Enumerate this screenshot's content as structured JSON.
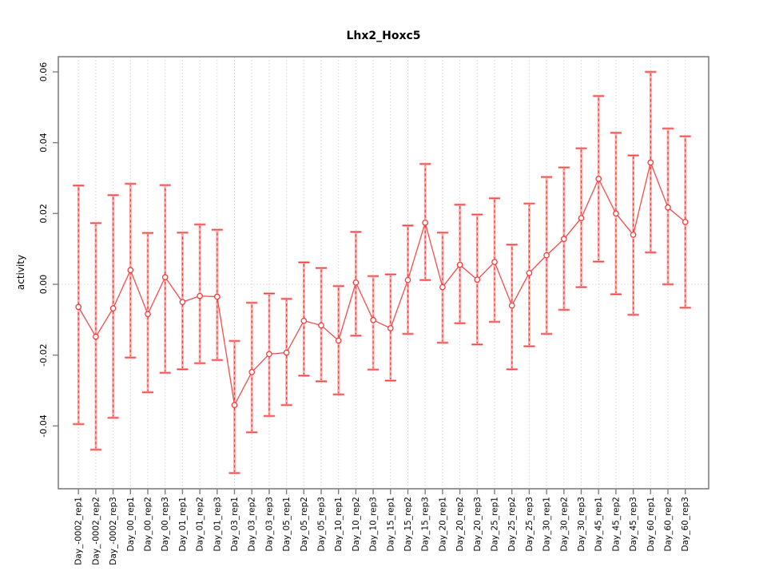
{
  "chart_data": {
    "type": "line",
    "subtype": "points-with-error-bars",
    "title": "Lhx2_Hoxc5",
    "xlabel": "",
    "ylabel": "activity",
    "legend": "none",
    "grid": {
      "vertical": "dotted at every category",
      "horizontal": "dotted at y=0 only"
    },
    "y_ticks": [
      0.06,
      0.04,
      0.02,
      0.0,
      -0.02,
      -0.04
    ],
    "y_tick_labels": [
      "0.06",
      "0.04",
      "0.02",
      "0.00",
      "-0.02",
      "-0.04"
    ],
    "ylim": [
      -0.058,
      0.064
    ],
    "categories": [
      "Day_-0002_rep1",
      "Day_-0002_rep2",
      "Day_-0002_rep3",
      "Day_00_rep1",
      "Day_00_rep2",
      "Day_00_rep3",
      "Day_01_rep1",
      "Day_01_rep2",
      "Day_01_rep3",
      "Day_03_rep1",
      "Day_03_rep2",
      "Day_03_rep3",
      "Day_05_rep1",
      "Day_05_rep2",
      "Day_05_rep3",
      "Day_10_rep1",
      "Day_10_rep2",
      "Day_10_rep3",
      "Day_15_rep1",
      "Day_15_rep2",
      "Day_15_rep3",
      "Day_20_rep1",
      "Day_20_rep2",
      "Day_20_rep3",
      "Day_25_rep1",
      "Day_25_rep2",
      "Day_25_rep3",
      "Day_30_rep1",
      "Day_30_rep2",
      "Day_30_rep3",
      "Day_45_rep1",
      "Day_45_rep2",
      "Day_45_rep3",
      "Day_60_rep1",
      "Day_60_rep2",
      "Day_60_rep3"
    ],
    "series": [
      {
        "name": "activity",
        "values": [
          -0.0064,
          -0.0148,
          -0.0068,
          0.004,
          -0.0084,
          0.002,
          -0.005,
          -0.0033,
          -0.0035,
          -0.0341,
          -0.0248,
          -0.0197,
          -0.0193,
          -0.0103,
          -0.0116,
          -0.0159,
          0.0005,
          -0.0101,
          -0.0124,
          0.0012,
          0.0174,
          -0.0008,
          0.0055,
          0.0013,
          0.0063,
          -0.006,
          0.0032,
          0.0082,
          0.0128,
          0.0187,
          0.0298,
          0.02,
          0.014,
          0.0344,
          0.0217,
          0.0176
        ],
        "error_lower": [
          -0.0395,
          -0.0467,
          -0.0377,
          -0.0207,
          -0.0305,
          -0.025,
          -0.024,
          -0.0223,
          -0.0214,
          -0.0533,
          -0.0418,
          -0.0372,
          -0.0341,
          -0.0258,
          -0.0274,
          -0.0311,
          -0.0145,
          -0.0241,
          -0.0272,
          -0.014,
          0.0012,
          -0.0165,
          -0.011,
          -0.017,
          -0.0106,
          -0.024,
          -0.0175,
          -0.014,
          -0.0072,
          -0.0008,
          0.0064,
          -0.0028,
          -0.0086,
          0.009,
          0.0,
          -0.0066
        ],
        "error_upper": [
          0.0279,
          0.0173,
          0.0252,
          0.0284,
          0.0145,
          0.028,
          0.0146,
          0.0169,
          0.0154,
          -0.016,
          -0.0052,
          -0.0026,
          -0.0041,
          0.0062,
          0.0046,
          -0.0005,
          0.0148,
          0.0023,
          0.0028,
          0.0166,
          0.034,
          0.0146,
          0.0225,
          0.0197,
          0.0243,
          0.0112,
          0.0228,
          0.0303,
          0.033,
          0.0384,
          0.0532,
          0.0428,
          0.0364,
          0.06,
          0.044,
          0.0418
        ]
      }
    ],
    "colors": {
      "point_stroke": "#f23d3d",
      "point_fill": "#ffffff",
      "connect_line": "#f24d4d",
      "errorbar_stem_pink": "#ffabab",
      "errorbar_stem_red": "#f23d3d",
      "grid": "#d6d6d6",
      "box": "#7f7f7f",
      "text": "#000000"
    }
  }
}
